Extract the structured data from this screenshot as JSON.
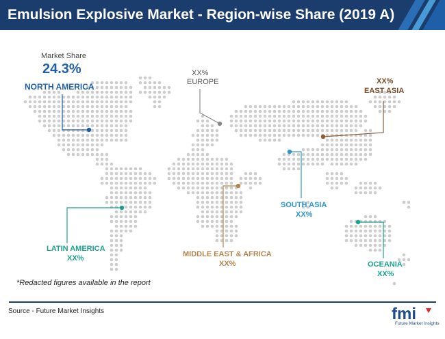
{
  "title": "Emulsion Explosive Market - Region-wise Share (2019 A)",
  "market_share_caption": "Market Share",
  "regions": {
    "north_america": {
      "name": "NORTH AMERICA",
      "value": "24.3%",
      "color": "#1f5fa8"
    },
    "europe": {
      "name": "EUROPE",
      "value": "XX%",
      "color": "#888888"
    },
    "east_asia": {
      "name": "EAST ASIA",
      "value": "XX%",
      "color": "#8a5a34"
    },
    "south_asia": {
      "name": "SOUTH ASIA",
      "value": "XX%",
      "color": "#2a97d4"
    },
    "latin_america": {
      "name": "LATIN AMERICA",
      "value": "XX%",
      "color": "#19a38c"
    },
    "middle_east_africa": {
      "name": "MIDDLE EAST & AFRICA",
      "value": "XX%",
      "color": "#b5834c"
    },
    "oceania": {
      "name": "OCEANIA",
      "value": "XX%",
      "color": "#19a38c"
    }
  },
  "footnote": "*Redacted figures available in the report",
  "source": "Source - Future Market Insights",
  "brand": {
    "logo": "fmi",
    "name": "Future Market Insights"
  },
  "colors": {
    "title_bar": "#1b3d6d",
    "map_dot": "#cccccc",
    "accent_blue": "#1f5fa8"
  }
}
